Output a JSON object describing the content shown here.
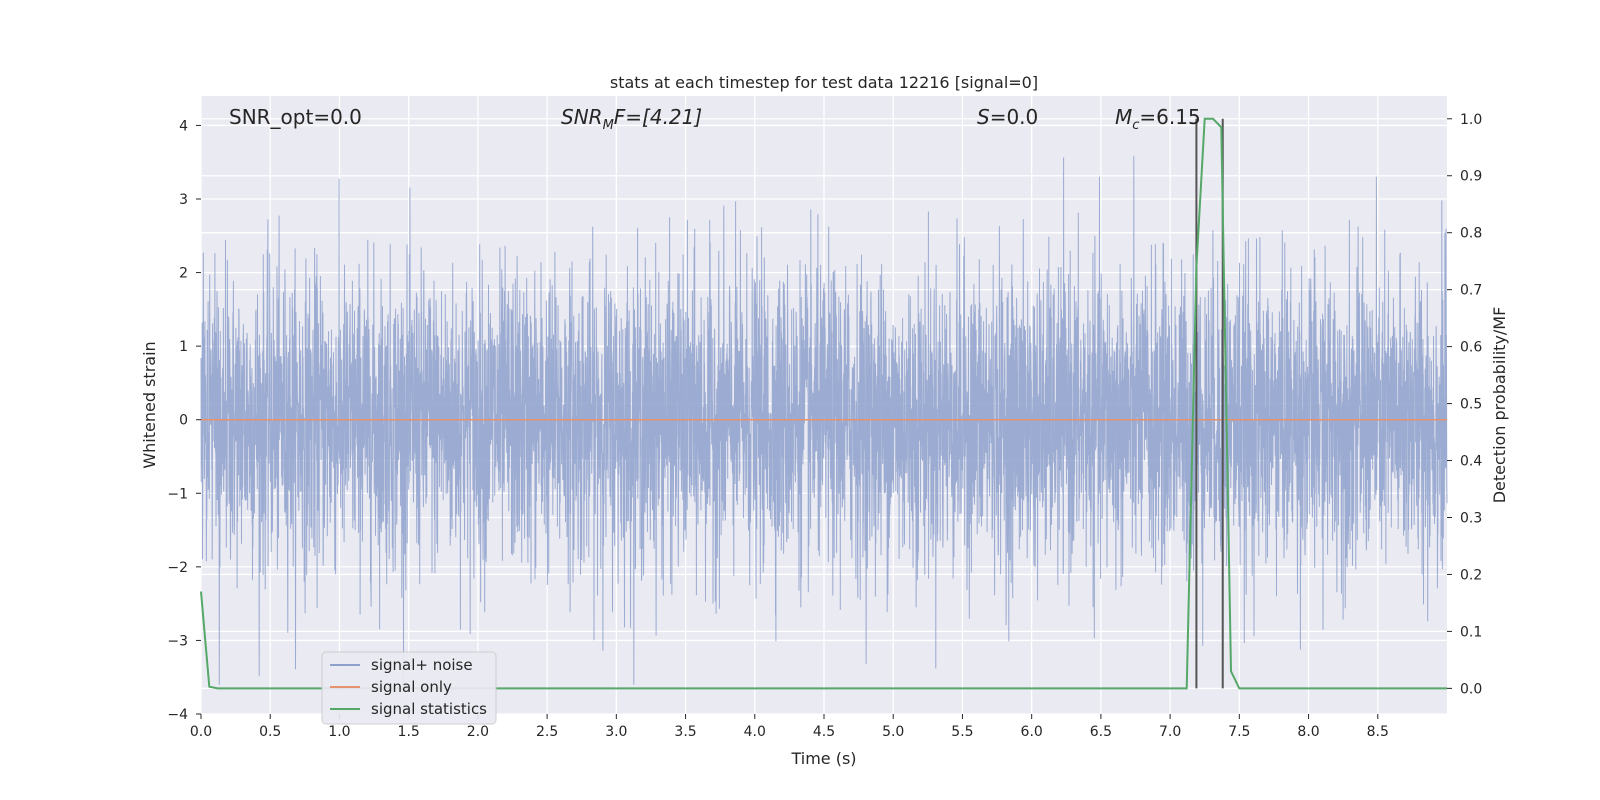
{
  "chart_data": {
    "type": "line",
    "title": "stats at each timestep for test data 12216 [signal=0]",
    "xlabel": "Time (s)",
    "ylabel": "Whitened strain",
    "y2label": "Detection probability/MF",
    "xlim": [
      0,
      9
    ],
    "ylim": [
      -4,
      4.4
    ],
    "y2lim": [
      -0.045,
      1.04
    ],
    "x_ticks": [
      0.0,
      0.5,
      1.0,
      1.5,
      2.0,
      2.5,
      3.0,
      3.5,
      4.0,
      4.5,
      5.0,
      5.5,
      6.0,
      6.5,
      7.0,
      7.5,
      8.0,
      8.5
    ],
    "x_tick_labels": [
      "0.0",
      "0.5",
      "1.0",
      "1.5",
      "2.0",
      "2.5",
      "3.0",
      "3.5",
      "4.0",
      "4.5",
      "5.0",
      "5.5",
      "6.0",
      "6.5",
      "7.0",
      "7.5",
      "8.0",
      "8.5"
    ],
    "y_ticks": [
      -4,
      -3,
      -2,
      -1,
      0,
      1,
      2,
      3,
      4
    ],
    "y_tick_labels": [
      "−4",
      "−3",
      "−2",
      "−1",
      "0",
      "1",
      "2",
      "3",
      "4"
    ],
    "y2_ticks": [
      0.0,
      0.1,
      0.2,
      0.3,
      0.4,
      0.5,
      0.6,
      0.7,
      0.8,
      0.9,
      1.0
    ],
    "y2_tick_labels": [
      "0.0",
      "0.1",
      "0.2",
      "0.3",
      "0.4",
      "0.5",
      "0.6",
      "0.7",
      "0.8",
      "0.9",
      "1.0"
    ],
    "grid": true,
    "legend_position": "lower-left",
    "annotations": {
      "snr_opt": "SNR_opt=0.0",
      "snr_mf_main": "SNR",
      "snr_mf_sub": "M",
      "snr_mf_rest": "F=[4.21]",
      "s_main": "S",
      "s_rest": "=0.0",
      "mc_main": "M",
      "mc_sub": "c",
      "mc_rest": "=6.15"
    },
    "series": [
      {
        "name": "signal+ noise",
        "color": "#8da0cb",
        "kind": "noise",
        "duration": 9.0,
        "amplitude_std": 1.0,
        "range": [
          -3.6,
          4.0
        ]
      },
      {
        "name": "signal only",
        "color": "#e5926e",
        "kind": "constant",
        "x": [
          0,
          9
        ],
        "y": [
          0,
          0
        ]
      },
      {
        "name": "signal statistics",
        "color": "#55a868",
        "kind": "line",
        "axis": "y2",
        "x": [
          0.0,
          0.06,
          0.12,
          7.12,
          7.19,
          7.25,
          7.31,
          7.37,
          7.44,
          7.5,
          9.0
        ],
        "y": [
          0.17,
          0.003,
          0.0,
          0.0,
          0.74,
          1.0,
          1.0,
          0.985,
          0.03,
          0.0,
          0.0
        ]
      }
    ],
    "vertical_lines": [
      {
        "x": 7.19,
        "color": "#555555"
      },
      {
        "x": 7.38,
        "color": "#555555"
      }
    ]
  }
}
